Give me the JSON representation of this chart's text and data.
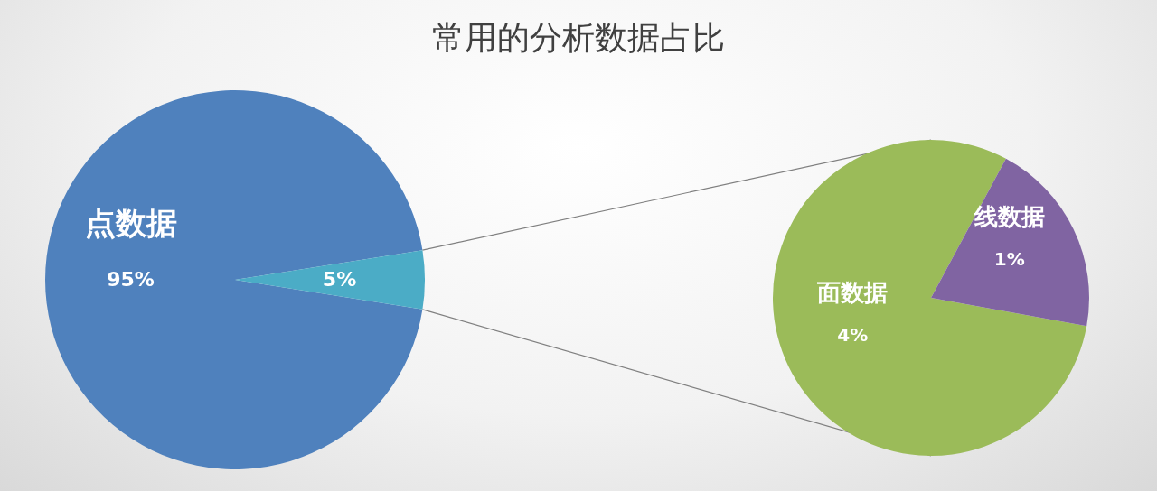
{
  "chart_data": [
    {
      "type": "pie",
      "title": "常用的分析数据占比",
      "categories": [
        "点数据",
        null
      ],
      "values": [
        95,
        5
      ],
      "colors": [
        "#4f81bd",
        "#4bacc6"
      ],
      "value_labels": [
        "95%",
        "5%"
      ]
    },
    {
      "type": "pie",
      "categories": [
        "面数据",
        "线数据"
      ],
      "values": [
        4,
        1
      ],
      "colors": [
        "#9bbb59",
        "#8064a2"
      ],
      "value_labels": [
        "4%",
        "1%"
      ]
    }
  ]
}
